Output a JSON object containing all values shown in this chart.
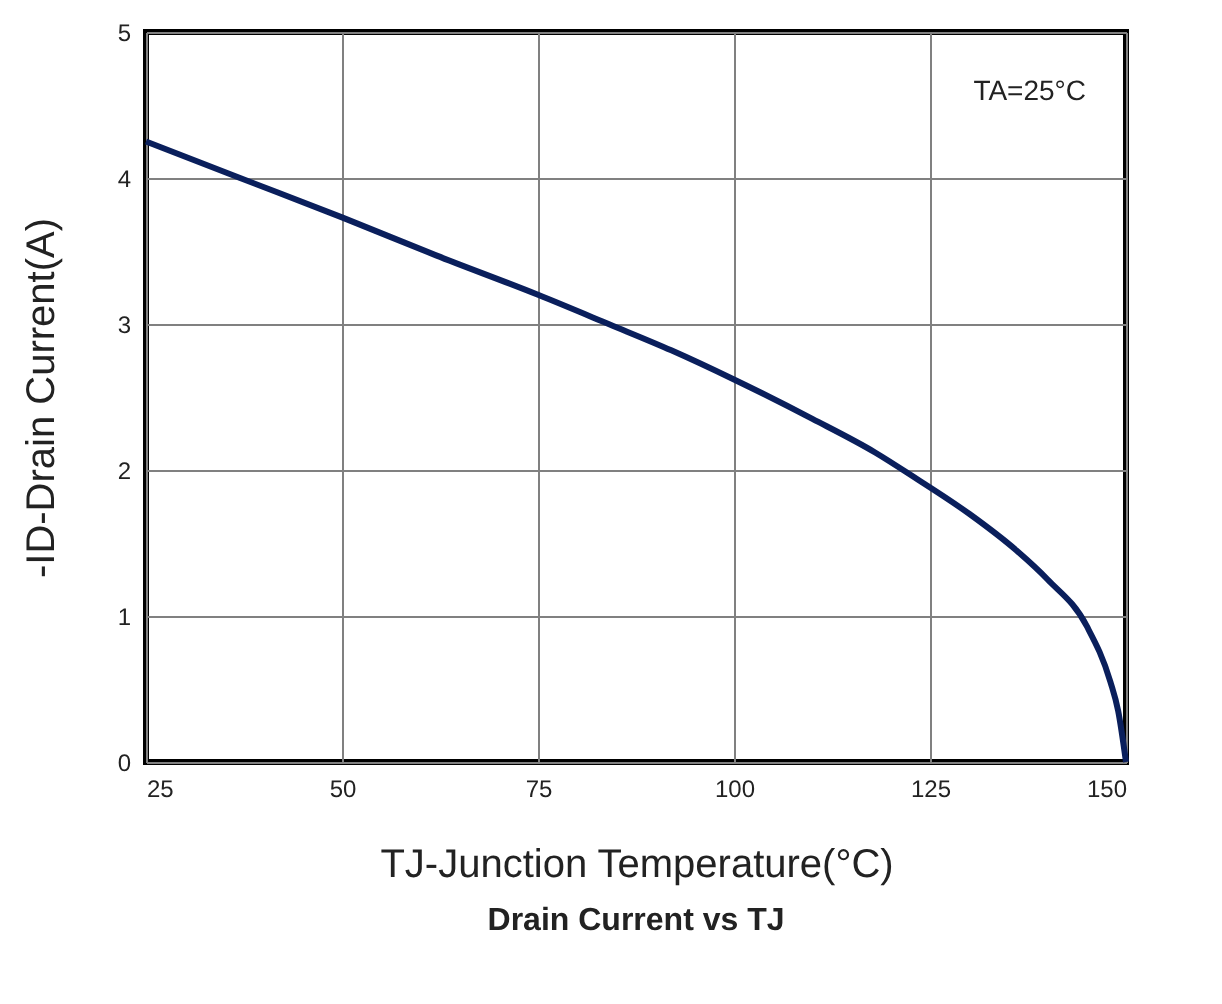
{
  "chart_data": {
    "type": "line",
    "title": "Drain Current vs TJ",
    "xlabel": "TJ-Junction Temperature(°C)",
    "ylabel": "-ID-Drain Current(A)",
    "annotations": [
      "TA=25°C"
    ],
    "x": [
      25,
      37,
      50,
      62,
      75,
      84,
      92,
      100,
      110,
      118,
      123,
      130,
      136,
      140,
      145,
      148,
      149,
      150
    ],
    "series": [
      {
        "color": "#0a1f5c",
        "values": [
          4.25,
          4.0,
          3.73,
          3.47,
          3.2,
          3.0,
          2.82,
          2.62,
          2.35,
          2.12,
          1.95,
          1.7,
          1.45,
          1.25,
          0.93,
          0.55,
          0.35,
          0
        ]
      }
    ],
    "xlim": [
      25,
      150
    ],
    "xticks": [
      25,
      50,
      75,
      100,
      125,
      150
    ],
    "ylim": [
      0,
      5
    ],
    "yticks": [
      0,
      1,
      2,
      3,
      4,
      5
    ],
    "grid": true,
    "marker": "none",
    "line_style": "solid"
  }
}
